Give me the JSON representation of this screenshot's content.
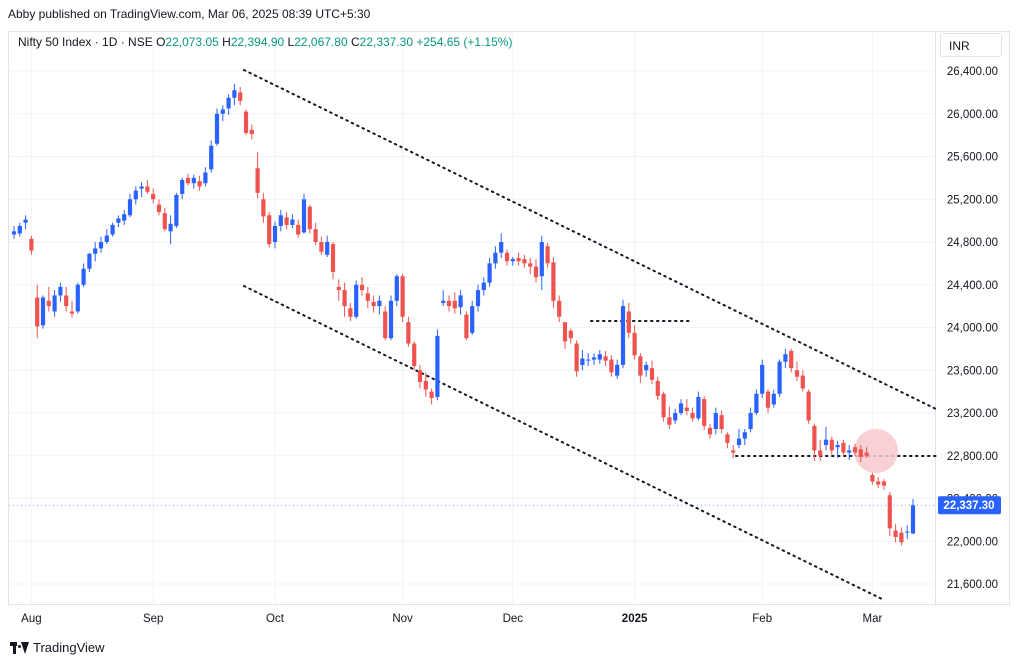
{
  "header": {
    "published": "Abby published on TradingView.com, Mar 06, 2025 08:39 UTC+5:30"
  },
  "legend": {
    "symbol": "Nifty 50 Index · 1D · NSE",
    "o_label": "O",
    "o_value": "22,073.05",
    "h_label": "H",
    "h_value": "22,394.90",
    "l_label": "L",
    "l_value": "22,067.80",
    "c_label": "C",
    "c_value": "22,337.30",
    "change": "+254.65 (+1.15%)"
  },
  "price_axis": {
    "currency": "INR"
  },
  "footer": {
    "brand": "TradingView"
  },
  "colors": {
    "up": "#2962ff",
    "down": "#ef5350",
    "grid": "#f0f3fa",
    "text": "#131722",
    "price_tag": "#2962ff",
    "highlight": "#f8c8cc"
  },
  "chart_data": {
    "type": "candlestick",
    "title": "Nifty 50 Index · 1D · NSE",
    "ylim": [
      21400,
      26600
    ],
    "y_ticks": [
      21600,
      22000,
      22400,
      22800,
      23200,
      23600,
      24000,
      24400,
      24800,
      25200,
      25600,
      26000,
      26400
    ],
    "y_tick_labels": [
      "21,600.00",
      "22,000.00",
      "22,400.00",
      "22,800.00",
      "23,200.00",
      "23,600.00",
      "24,000.00",
      "24,400.00",
      "24,800.00",
      "25,200.00",
      "25,600.00",
      "26,000.00",
      "26,400.00"
    ],
    "x_labels": [
      {
        "label": "Aug",
        "index": 3,
        "bold": false
      },
      {
        "label": "Sep",
        "index": 24,
        "bold": false
      },
      {
        "label": "Oct",
        "index": 45,
        "bold": false
      },
      {
        "label": "Nov",
        "index": 67,
        "bold": false
      },
      {
        "label": "Dec",
        "index": 86,
        "bold": false
      },
      {
        "label": "2025",
        "index": 107,
        "bold": true
      },
      {
        "label": "Feb",
        "index": 129,
        "bold": false
      },
      {
        "label": "Mar",
        "index": 148,
        "bold": false
      }
    ],
    "last_price": 22337.3,
    "last_price_label": "22,337.30",
    "candles": [
      [
        24870,
        24950,
        24830,
        24900
      ],
      [
        24880,
        24980,
        24850,
        24950
      ],
      [
        24980,
        25050,
        24920,
        25010
      ],
      [
        24830,
        24860,
        24680,
        24720
      ],
      [
        24280,
        24400,
        23900,
        24010
      ],
      [
        24020,
        24300,
        23990,
        24280
      ],
      [
        24250,
        24380,
        24150,
        24200
      ],
      [
        24150,
        24350,
        24100,
        24300
      ],
      [
        24300,
        24420,
        24240,
        24380
      ],
      [
        24300,
        24380,
        24150,
        24200
      ],
      [
        24150,
        24250,
        24090,
        24130
      ],
      [
        24150,
        24420,
        24130,
        24400
      ],
      [
        24400,
        24600,
        24380,
        24550
      ],
      [
        24550,
        24700,
        24520,
        24690
      ],
      [
        24690,
        24800,
        24620,
        24740
      ],
      [
        24740,
        24850,
        24700,
        24800
      ],
      [
        24800,
        24920,
        24780,
        24860
      ],
      [
        24870,
        24980,
        24850,
        24960
      ],
      [
        24980,
        25050,
        24940,
        25020
      ],
      [
        25000,
        25100,
        24960,
        25060
      ],
      [
        25050,
        25250,
        25030,
        25200
      ],
      [
        25200,
        25320,
        25150,
        25280
      ],
      [
        25300,
        25360,
        25220,
        25320
      ],
      [
        25320,
        25380,
        25250,
        25270
      ],
      [
        25250,
        25300,
        25160,
        25200
      ],
      [
        25150,
        25200,
        25050,
        25080
      ],
      [
        25070,
        25120,
        24900,
        24920
      ],
      [
        24900,
        25050,
        24780,
        24970
      ],
      [
        24950,
        25260,
        24930,
        25240
      ],
      [
        25250,
        25400,
        25200,
        25380
      ],
      [
        25400,
        25440,
        25330,
        25350
      ],
      [
        25350,
        25430,
        25300,
        25400
      ],
      [
        25370,
        25420,
        25280,
        25320
      ],
      [
        25350,
        25500,
        25320,
        25450
      ],
      [
        25480,
        25750,
        25450,
        25700
      ],
      [
        25720,
        26050,
        25700,
        26000
      ],
      [
        26000,
        26080,
        25930,
        26040
      ],
      [
        26050,
        26180,
        25990,
        26150
      ],
      [
        26150,
        26280,
        26080,
        26220
      ],
      [
        26200,
        26250,
        26080,
        26120
      ],
      [
        26020,
        26040,
        25800,
        25820
      ],
      [
        25850,
        25900,
        25760,
        25810
      ],
      [
        25490,
        25640,
        25210,
        25260
      ],
      [
        25200,
        25260,
        24980,
        25040
      ],
      [
        25050,
        25080,
        24750,
        24780
      ],
      [
        24800,
        24990,
        24740,
        24950
      ],
      [
        24950,
        25100,
        24900,
        25050
      ],
      [
        25030,
        25080,
        24920,
        24960
      ],
      [
        24960,
        25060,
        24930,
        25010
      ],
      [
        24960,
        25010,
        24840,
        24870
      ],
      [
        24890,
        25250,
        24880,
        25200
      ],
      [
        25130,
        25150,
        24880,
        24920
      ],
      [
        24920,
        24980,
        24770,
        24800
      ],
      [
        24800,
        24850,
        24680,
        24710
      ],
      [
        24680,
        24860,
        24660,
        24800
      ],
      [
        24780,
        24800,
        24450,
        24520
      ],
      [
        24380,
        24450,
        24250,
        24350
      ],
      [
        24350,
        24420,
        24100,
        24200
      ],
      [
        24180,
        24230,
        24060,
        24100
      ],
      [
        24100,
        24440,
        24080,
        24400
      ],
      [
        24400,
        24470,
        24300,
        24350
      ],
      [
        24320,
        24380,
        24180,
        24250
      ],
      [
        24240,
        24300,
        24140,
        24200
      ],
      [
        24200,
        24300,
        24120,
        24250
      ],
      [
        24150,
        24200,
        23880,
        23900
      ],
      [
        23900,
        24300,
        23880,
        24250
      ],
      [
        24250,
        24500,
        24200,
        24480
      ],
      [
        24480,
        24500,
        24050,
        24100
      ],
      [
        24050,
        24100,
        23820,
        23850
      ],
      [
        23850,
        23870,
        23600,
        23640
      ],
      [
        23600,
        23650,
        23430,
        23490
      ],
      [
        23500,
        23580,
        23350,
        23420
      ],
      [
        23400,
        23430,
        23280,
        23340
      ],
      [
        23350,
        23980,
        23320,
        23920
      ],
      [
        24230,
        24350,
        24200,
        24250
      ],
      [
        24250,
        24300,
        24150,
        24200
      ],
      [
        24250,
        24330,
        24130,
        24180
      ],
      [
        24190,
        24350,
        24120,
        24300
      ],
      [
        24120,
        24150,
        23880,
        23900
      ],
      [
        23950,
        24250,
        23930,
        24200
      ],
      [
        24200,
        24400,
        24150,
        24350
      ],
      [
        24350,
        24470,
        24300,
        24420
      ],
      [
        24420,
        24650,
        24380,
        24600
      ],
      [
        24600,
        24760,
        24550,
        24700
      ],
      [
        24700,
        24880,
        24650,
        24800
      ],
      [
        24700,
        24730,
        24580,
        24620
      ],
      [
        24620,
        24660,
        24580,
        24640
      ],
      [
        24650,
        24700,
        24580,
        24620
      ],
      [
        24640,
        24680,
        24560,
        24600
      ],
      [
        24600,
        24650,
        24500,
        24570
      ],
      [
        24570,
        24640,
        24420,
        24470
      ],
      [
        24480,
        24860,
        24350,
        24800
      ],
      [
        24760,
        24790,
        24560,
        24600
      ],
      [
        24610,
        24660,
        24180,
        24250
      ],
      [
        24250,
        24300,
        24050,
        24100
      ],
      [
        24050,
        24050,
        23800,
        23870
      ],
      [
        23970,
        23990,
        23850,
        23900
      ],
      [
        23850,
        23880,
        23540,
        23590
      ],
      [
        23650,
        23790,
        23600,
        23710
      ],
      [
        23700,
        23760,
        23640,
        23700
      ],
      [
        23700,
        23760,
        23650,
        23720
      ],
      [
        23700,
        23790,
        23660,
        23750
      ],
      [
        23730,
        23780,
        23640,
        23690
      ],
      [
        23700,
        23740,
        23540,
        23580
      ],
      [
        23550,
        23700,
        23520,
        23650
      ],
      [
        23650,
        24260,
        23620,
        24200
      ],
      [
        24150,
        24230,
        23900,
        23950
      ],
      [
        23950,
        24020,
        23700,
        23740
      ],
      [
        23730,
        23760,
        23480,
        23550
      ],
      [
        23600,
        23680,
        23540,
        23650
      ],
      [
        23620,
        23690,
        23470,
        23510
      ],
      [
        23500,
        23540,
        23320,
        23360
      ],
      [
        23380,
        23400,
        23120,
        23160
      ],
      [
        23160,
        23260,
        23050,
        23090
      ],
      [
        23130,
        23240,
        23100,
        23200
      ],
      [
        23200,
        23330,
        23180,
        23290
      ],
      [
        23250,
        23330,
        23180,
        23220
      ],
      [
        23200,
        23250,
        23120,
        23150
      ],
      [
        23150,
        23400,
        23130,
        23350
      ],
      [
        23330,
        23360,
        23040,
        23080
      ],
      [
        23060,
        23100,
        22960,
        23000
      ],
      [
        23050,
        23250,
        23000,
        23200
      ],
      [
        23180,
        23220,
        23010,
        23050
      ],
      [
        23000,
        23020,
        22870,
        22920
      ],
      [
        22850,
        22900,
        22780,
        22830
      ],
      [
        22900,
        23050,
        22870,
        22960
      ],
      [
        22960,
        23050,
        22900,
        23020
      ],
      [
        23050,
        23250,
        23020,
        23200
      ],
      [
        23200,
        23420,
        23180,
        23380
      ],
      [
        23380,
        23700,
        23340,
        23650
      ],
      [
        23400,
        23420,
        23200,
        23250
      ],
      [
        23280,
        23420,
        23250,
        23380
      ],
      [
        23380,
        23700,
        23350,
        23680
      ],
      [
        23680,
        23800,
        23620,
        23750
      ],
      [
        23780,
        23800,
        23580,
        23620
      ],
      [
        23600,
        23680,
        23500,
        23540
      ],
      [
        23550,
        23600,
        23400,
        23430
      ],
      [
        23400,
        23420,
        23100,
        23130
      ],
      [
        23080,
        23100,
        22750,
        22850
      ],
      [
        22850,
        22950,
        22750,
        22800
      ],
      [
        22900,
        23070,
        22850,
        22950
      ],
      [
        22950,
        22980,
        22800,
        22850
      ],
      [
        22880,
        22940,
        22780,
        22900
      ],
      [
        22920,
        22950,
        22790,
        22830
      ],
      [
        22830,
        22900,
        22760,
        22850
      ],
      [
        22880,
        22910,
        22800,
        22830
      ],
      [
        22860,
        22900,
        22740,
        22790
      ],
      [
        22830,
        22880,
        22780,
        22800
      ],
      [
        22620,
        22640,
        22530,
        22560
      ],
      [
        22560,
        22600,
        22500,
        22530
      ],
      [
        22560,
        22580,
        22480,
        22520
      ],
      [
        22430,
        22460,
        22050,
        22120
      ],
      [
        22100,
        22160,
        21990,
        22040
      ],
      [
        22080,
        22130,
        21960,
        21990
      ],
      [
        22080,
        22150,
        22020,
        22090
      ],
      [
        22073,
        22395,
        22068,
        22337
      ]
    ]
  }
}
